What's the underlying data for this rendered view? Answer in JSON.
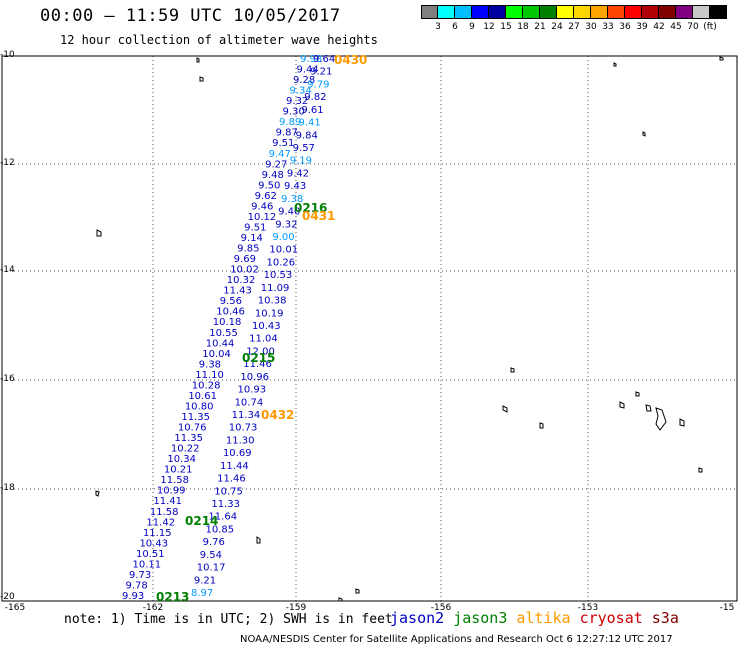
{
  "header": {
    "title": "00:00 — 11:59 UTC 10/05/2017",
    "subtitle": "12 hour collection of altimeter wave heights"
  },
  "colorbar": {
    "colors": [
      "#7f7f7f",
      "#00ffff",
      "#00bfff",
      "#0000ff",
      "#0000a0",
      "#00ff00",
      "#00c800",
      "#008000",
      "#ffff00",
      "#ffd700",
      "#ffa500",
      "#ff4500",
      "#ff0000",
      "#b00000",
      "#800000",
      "#800080",
      "#c8c8c8",
      "#000000"
    ],
    "labels": [
      "3",
      "6",
      "9",
      "12",
      "15",
      "18",
      "21",
      "24",
      "27",
      "30",
      "33",
      "36",
      "39",
      "42",
      "45",
      "70",
      "(ft)"
    ]
  },
  "axes": {
    "lat_labels": [
      "-10",
      "-12",
      "-14",
      "-16",
      "-18",
      "-20"
    ],
    "lon_labels": [
      "-165",
      "-162",
      "-159",
      "-156",
      "-153",
      "-15"
    ]
  },
  "colors": {
    "jason2": "#0000c0",
    "jason3": "#008000",
    "altika": "#ff9900",
    "cryosat": "#cc0000",
    "s3a": "#800000",
    "light": "#0099ff"
  },
  "tracks": {
    "left": [
      "9.93",
      "9.78",
      "9.73",
      "10.11",
      "10.51",
      "10.43",
      "11.15",
      "11.42",
      "11.58",
      "11.41",
      "10.99",
      "11.58",
      "10.21",
      "10.34",
      "10.22",
      "11.35",
      "10.76",
      "11.35",
      "10.80",
      "10.61",
      "10.28",
      "11.10",
      "9.38",
      "10.04",
      "10.44",
      "10.55",
      "10.18",
      "10.46",
      "9.56",
      "11.43",
      "10.32",
      "10.02",
      "9.69",
      "9.85",
      "9.14",
      "9.51",
      "10.12",
      "9.46",
      "9.62",
      "9.50",
      "9.48",
      "9.27",
      "9.47",
      "9.51",
      "9.87",
      "9.89",
      "9.30",
      "9.32",
      "9.34",
      "9.28",
      "9.44",
      "9.98"
    ],
    "right": [
      "8.97",
      "9.21",
      "10.17",
      "9.54",
      "9.76",
      "10.85",
      "11.64",
      "11.33",
      "10.75",
      "11.46",
      "11.44",
      "10.69",
      "11.30",
      "10.73",
      "11.34",
      "10.74",
      "10.93",
      "10.96",
      "11.46",
      "12.00",
      "11.04",
      "10.43",
      "10.19",
      "10.38",
      "11.09",
      "10.53",
      "10.26",
      "10.01",
      "9.00",
      "9.32",
      "9.40",
      "9.38",
      "9.43",
      "9.42",
      "9.19",
      "9.57",
      "9.84",
      "9.41",
      "9.61",
      "9.82",
      "9.79",
      "9.21",
      "9.64"
    ],
    "times": [
      {
        "label": "0430",
        "sat": "altika"
      },
      {
        "label": "0216",
        "sat": "jason3"
      },
      {
        "label": "0431",
        "sat": "altika"
      },
      {
        "label": "0215",
        "sat": "jason3"
      },
      {
        "label": "0432",
        "sat": "altika"
      },
      {
        "label": "0214",
        "sat": "jason3"
      },
      {
        "label": "0213",
        "sat": "jason3"
      }
    ]
  },
  "footer": {
    "note": "note: 1) Time is in UTC; 2) SWH is in feet",
    "legend": [
      {
        "name": "jason2",
        "color": "#0000c0"
      },
      {
        "name": "jason3",
        "color": "#008000"
      },
      {
        "name": "altika",
        "color": "#ff9900"
      },
      {
        "name": "cryosat",
        "color": "#cc0000"
      },
      {
        "name": "s3a",
        "color": "#800000"
      }
    ],
    "credit": "NOAA/NESDIS Center for Satellite Applications and Research  Oct  6 12:27:12 UTC 2017"
  }
}
